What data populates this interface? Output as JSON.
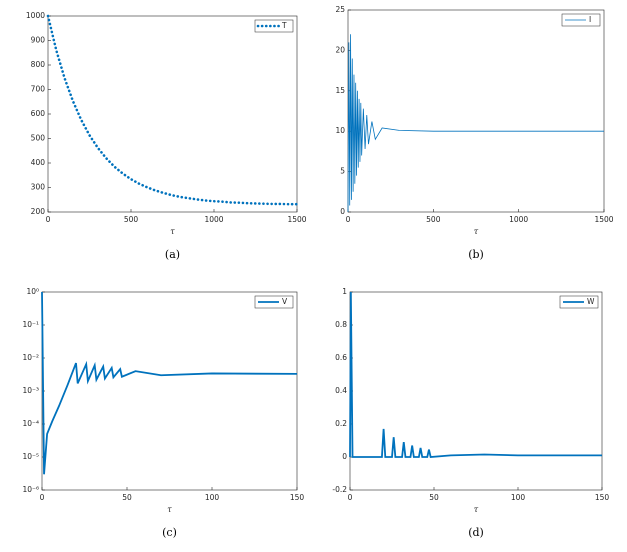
{
  "chart_data": [
    {
      "type": "line",
      "caption": "(a)",
      "xlabel": "τ",
      "x": [
        0,
        50,
        100,
        150,
        200,
        250,
        300,
        350,
        400,
        450,
        500,
        550,
        600,
        650,
        700,
        750,
        800,
        850,
        900,
        950,
        1000,
        1050,
        1100,
        1150,
        1200,
        1250,
        1300,
        1350,
        1400,
        1450,
        1500
      ],
      "series": [
        {
          "name": "T",
          "color": "#0072bd",
          "style": "dotted",
          "values": [
            1000,
            860,
            746,
            653,
            576,
            513,
            462,
            420,
            385,
            357,
            334,
            315,
            300,
            287,
            277,
            268,
            261,
            256,
            251,
            247,
            244,
            242,
            239,
            238,
            236,
            235,
            234,
            233,
            233,
            232,
            232
          ]
        }
      ],
      "xlim": [
        0,
        1500
      ],
      "xticks": [
        0,
        500,
        1000,
        1500
      ],
      "ylim": [
        200,
        1000
      ],
      "yticks": [
        200,
        300,
        400,
        500,
        600,
        700,
        800,
        900,
        1000
      ],
      "legend": "upper right"
    },
    {
      "type": "line",
      "caption": "(b)",
      "xlabel": "τ",
      "x": [
        0,
        5,
        10,
        15,
        20,
        25,
        30,
        35,
        40,
        45,
        50,
        55,
        60,
        65,
        70,
        75,
        80,
        90,
        100,
        110,
        120,
        140,
        160,
        200,
        300,
        500,
        1000,
        1500
      ],
      "series": [
        {
          "name": "I",
          "color": "#0072bd",
          "style": "solid",
          "values": [
            0,
            21,
            0.8,
            22,
            1.5,
            19,
            2.5,
            17,
            3.5,
            16,
            4.5,
            15,
            5.5,
            14,
            6.2,
            13.5,
            7,
            12.8,
            7.8,
            12,
            8.4,
            11.2,
            9,
            10.4,
            10.1,
            10,
            10,
            10
          ]
        }
      ],
      "xlim": [
        0,
        1500
      ],
      "xticks": [
        0,
        500,
        1000,
        1500
      ],
      "ylim": [
        0,
        25
      ],
      "yticks": [
        0,
        5,
        10,
        15,
        20,
        25
      ],
      "legend": "upper right"
    },
    {
      "type": "line",
      "caption": "(c)",
      "xlabel": "τ",
      "log_y": true,
      "x": [
        0,
        1.2,
        3,
        6,
        10,
        15,
        20,
        21,
        26,
        27,
        31,
        32,
        36,
        37,
        41,
        42,
        46,
        47,
        55,
        70,
        100,
        150
      ],
      "series": [
        {
          "name": "V",
          "color": "#0072bd",
          "style": "solid",
          "values": [
            1,
            3e-06,
            5e-05,
            0.00012,
            0.00035,
            0.0015,
            0.007,
            0.0017,
            0.0065,
            0.002,
            0.006,
            0.0022,
            0.0055,
            0.0024,
            0.005,
            0.0026,
            0.0046,
            0.0027,
            0.004,
            0.003,
            0.0034,
            0.0033
          ]
        }
      ],
      "xlim": [
        0,
        150
      ],
      "xticks": [
        0,
        50,
        100,
        150
      ],
      "ylim": [
        1e-06,
        1
      ],
      "yticks": [
        {
          "value": 1e-06,
          "label": "10⁻⁶"
        },
        {
          "value": 1e-05,
          "label": "10⁻⁵"
        },
        {
          "value": 0.0001,
          "label": "10⁻⁴"
        },
        {
          "value": 0.001,
          "label": "10⁻³"
        },
        {
          "value": 0.01,
          "label": "10⁻²"
        },
        {
          "value": 0.1,
          "label": "10⁻¹"
        },
        {
          "value": 1,
          "label": "10⁰"
        }
      ],
      "legend": "upper right"
    },
    {
      "type": "line",
      "caption": "(d)",
      "xlabel": "τ",
      "x": [
        0,
        0.5,
        1.5,
        19,
        20,
        21,
        25,
        26,
        27,
        31,
        32,
        33,
        36,
        37,
        38,
        41,
        42,
        43,
        46,
        47,
        48,
        60,
        80,
        100,
        150
      ],
      "series": [
        {
          "name": "W",
          "color": "#0072bd",
          "style": "solid",
          "values": [
            0,
            1,
            0,
            0,
            0.17,
            0,
            0,
            0.12,
            0,
            0,
            0.09,
            0,
            0,
            0.07,
            0,
            0,
            0.055,
            0,
            0,
            0.045,
            0,
            0.01,
            0.015,
            0.01,
            0.01
          ]
        }
      ],
      "xlim": [
        0,
        150
      ],
      "xticks": [
        0,
        50,
        100,
        150
      ],
      "ylim": [
        -0.2,
        1
      ],
      "yticks": [
        -0.2,
        0,
        0.2,
        0.4,
        0.6,
        0.8,
        1
      ],
      "legend": "upper right"
    }
  ]
}
